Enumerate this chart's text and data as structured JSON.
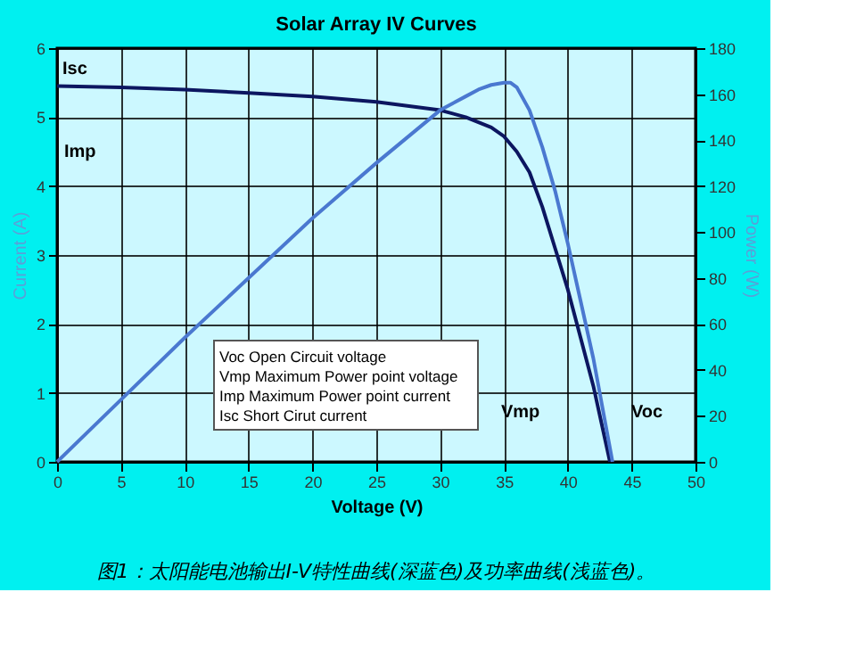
{
  "chart_data": {
    "type": "line",
    "title": "Solar Array IV Curves",
    "xlabel": "Voltage (V)",
    "ylabel": "Current (A)",
    "y2label": "Power (W)",
    "xlim": [
      0,
      50
    ],
    "xticks": [
      0,
      5,
      10,
      15,
      20,
      25,
      30,
      35,
      40,
      45,
      50
    ],
    "ylim": [
      0,
      6
    ],
    "yticks": [
      0,
      1,
      2,
      3,
      4,
      5,
      6
    ],
    "y2lim": [
      0,
      180
    ],
    "y2ticks": [
      0,
      20,
      40,
      60,
      80,
      100,
      120,
      140,
      160,
      180
    ],
    "grid": true,
    "marker": "none",
    "line_style": "solid",
    "series": [
      {
        "color": "#0c1660",
        "x": [
          0,
          5,
          10,
          15,
          20,
          25,
          30,
          32,
          34,
          35,
          36,
          37,
          38,
          39,
          40,
          41,
          42,
          43.3
        ],
        "values": [
          5.45,
          5.43,
          5.4,
          5.35,
          5.3,
          5.22,
          5.1,
          5.0,
          4.85,
          4.72,
          4.5,
          4.2,
          3.7,
          3.1,
          2.5,
          1.8,
          1.1,
          0
        ]
      },
      {
        "color": "#4a78d0",
        "axis": "y2",
        "x": [
          0,
          5,
          10,
          15,
          20,
          25,
          30,
          32,
          33,
          34,
          35,
          35.5,
          36,
          37,
          38,
          39,
          40,
          41,
          42,
          43.5
        ],
        "values": [
          0,
          27,
          54,
          80,
          106,
          130,
          153,
          159,
          162,
          164,
          165,
          165,
          163,
          153,
          137,
          118,
          95,
          70,
          45,
          0
        ]
      }
    ],
    "annotations": [
      {
        "text": "Isc",
        "x": 0,
        "y": 5.45
      },
      "Imp",
      "Vmp",
      "Voc",
      "Voc    Open Circuit voltage",
      "Vmp    Maximum Power point voltage",
      "Imp     Maximum Power point current",
      "Isc      Short Cirut current",
      "图1：太阳能电池输出I-V特性曲线(深蓝色)及功率曲线(浅蓝色)。"
    ]
  }
}
